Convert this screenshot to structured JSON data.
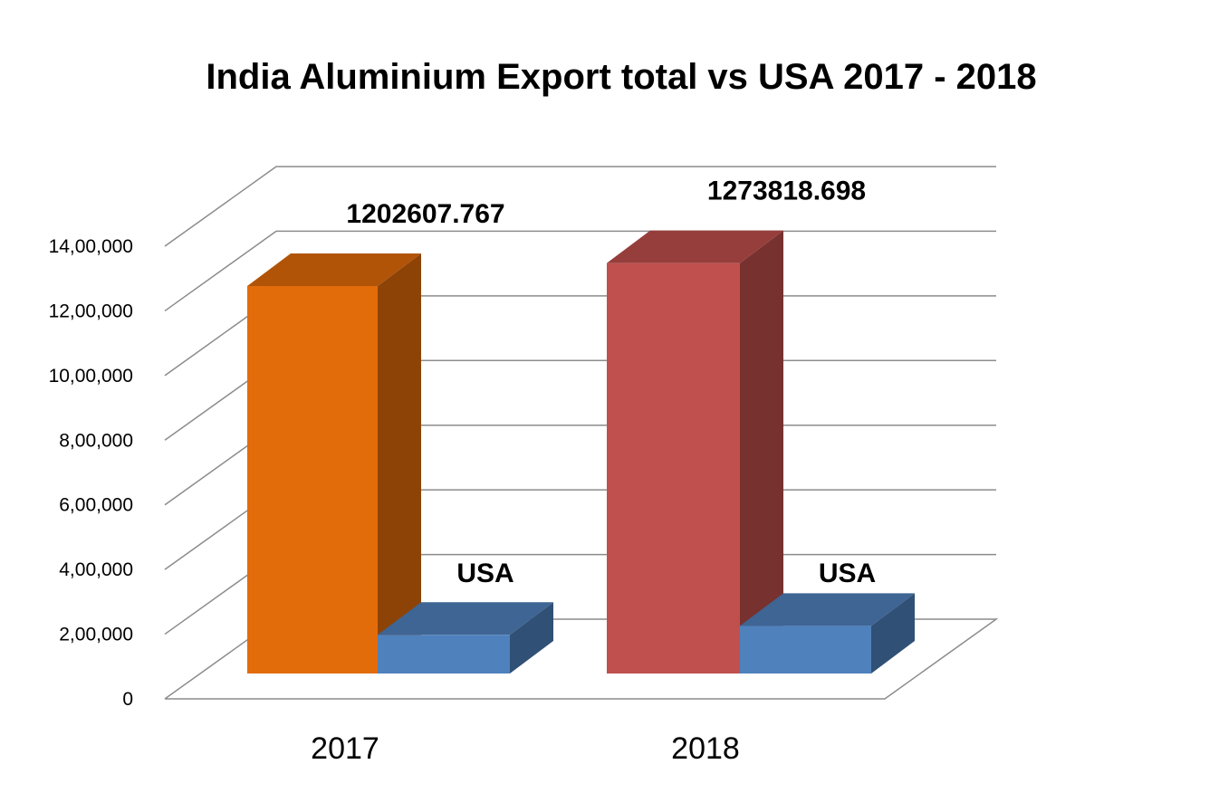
{
  "chart_data": {
    "type": "bar",
    "title": "India Aluminium Export total vs USA 2017 - 2018",
    "categories": [
      "2017",
      "2018"
    ],
    "series": [
      {
        "values": [
          1202607.767,
          1273818.698
        ],
        "data_labels": [
          "1202607.767",
          "1273818.698"
        ],
        "colors": [
          "#e36c0a",
          "#c0504d"
        ]
      },
      {
        "values": [
          120000,
          148000
        ],
        "data_labels": [
          "USA",
          "USA"
        ],
        "colors": [
          "#4f81bd",
          "#4f81bd"
        ]
      }
    ],
    "ylim": [
      0,
      1400000
    ],
    "yticks": [
      "0",
      "2,00,000",
      "4,00,000",
      "6,00,000",
      "8,00,000",
      "10,00,000",
      "12,00,000",
      "14,00,000"
    ],
    "xlabel": "",
    "ylabel": "",
    "grid": true,
    "legend": "none",
    "style": "3d-clustered-column"
  }
}
